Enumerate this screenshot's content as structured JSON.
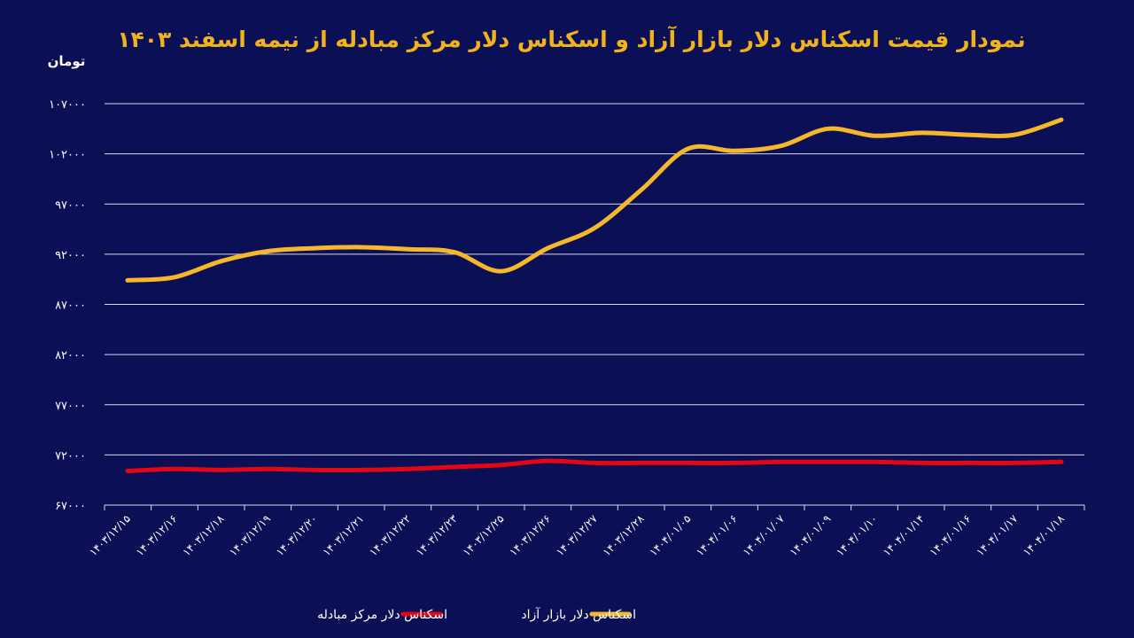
{
  "chart_data": {
    "type": "line",
    "title": "نمودار قیمت اسکناس دلار بازار آزاد و اسکناس دلار مرکز مبادله از نیمه اسفند ۱۴۰۳",
    "ylabel": "تومان",
    "xlabel": "",
    "ylim": [
      67000,
      107000
    ],
    "yticks": [
      67000,
      72000,
      77000,
      82000,
      87000,
      92000,
      97000,
      102000,
      107000
    ],
    "ytick_labels": [
      "۶۷۰۰۰",
      "۷۲۰۰۰",
      "۷۷۰۰۰",
      "۸۲۰۰۰",
      "۸۷۰۰۰",
      "۹۲۰۰۰",
      "۹۷۰۰۰",
      "۱۰۲۰۰۰",
      "۱۰۷۰۰۰"
    ],
    "categories": [
      "۱۴۰۳/۱۲/۱۵",
      "۱۴۰۳/۱۲/۱۶",
      "۱۴۰۳/۱۲/۱۸",
      "۱۴۰۳/۱۲/۱۹",
      "۱۴۰۳/۱۲/۲۰",
      "۱۴۰۳/۱۲/۲۱",
      "۱۴۰۳/۱۲/۲۲",
      "۱۴۰۳/۱۲/۲۳",
      "۱۴۰۳/۱۲/۲۵",
      "۱۴۰۳/۱۲/۲۶",
      "۱۴۰۳/۱۲/۲۷",
      "۱۴۰۳/۱۲/۲۸",
      "۱۴۰۴/۰۱/۰۵",
      "۱۴۰۴/۰۱/۰۶",
      "۱۴۰۴/۰۱/۰۷",
      "۱۴۰۴/۰۱/۰۹",
      "۱۴۰۴/۰۱/۱۰",
      "۱۴۰۴/۰۱/۱۴",
      "۱۴۰۴/۰۱/۱۶",
      "۱۴۰۴/۰۱/۱۷",
      "۱۴۰۴/۰۱/۱۸"
    ],
    "grid": true,
    "legend_position": "bottom",
    "series": [
      {
        "name": "اسکناس دلار بازار آزاد",
        "color": "#f5b82a",
        "values": [
          89400,
          89700,
          91300,
          92300,
          92600,
          92700,
          92500,
          92200,
          90300,
          92600,
          94600,
          98400,
          102500,
          102300,
          102800,
          104500,
          103800,
          104100,
          103900,
          103900,
          105400
        ]
      },
      {
        "name": "اسکناس دلار مرکز مبادله",
        "color": "#e30613",
        "values": [
          70400,
          70600,
          70500,
          70600,
          70500,
          70500,
          70600,
          70800,
          71000,
          71400,
          71200,
          71200,
          71200,
          71200,
          71300,
          71300,
          71300,
          71200,
          71200,
          71200,
          71300
        ]
      }
    ]
  }
}
